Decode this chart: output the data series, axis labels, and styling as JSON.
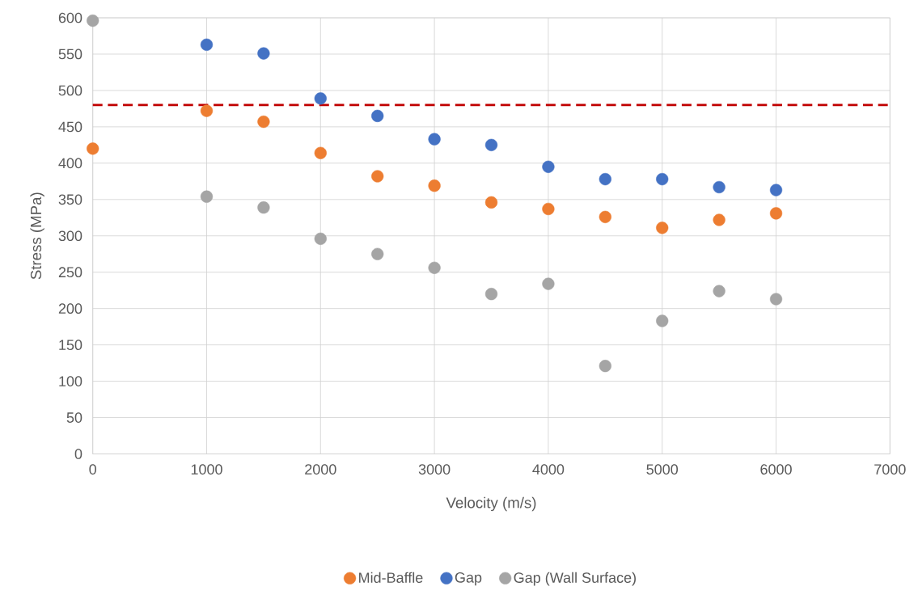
{
  "chart_data": {
    "type": "scatter",
    "xlabel": "Velocity (m/s)",
    "ylabel": "Stress (MPa)",
    "xlim": [
      0,
      7000
    ],
    "xticks": [
      0,
      1000,
      2000,
      3000,
      4000,
      5000,
      6000,
      7000
    ],
    "ylim": [
      0,
      600
    ],
    "yticks": [
      0,
      50,
      100,
      150,
      200,
      250,
      300,
      350,
      400,
      450,
      500,
      550,
      600
    ],
    "grid": true,
    "legend": "bottom",
    "marker": "circle",
    "series": [
      {
        "name": "Mid-Baffle",
        "color": "#ed7d31",
        "x": [
          0,
          1000,
          1500,
          2000,
          2500,
          3000,
          3500,
          4000,
          4500,
          5000,
          5500,
          6000
        ],
        "values": [
          420,
          472,
          457,
          414,
          382,
          369,
          346,
          337,
          326,
          311,
          322,
          331
        ]
      },
      {
        "name": "Gap",
        "color": "#4472c4",
        "x": [
          1000,
          1500,
          2000,
          2500,
          3000,
          3500,
          4000,
          4500,
          5000,
          5500,
          6000
        ],
        "values": [
          563,
          551,
          489,
          465,
          433,
          425,
          395,
          378,
          378,
          367,
          363
        ]
      },
      {
        "name": "Gap (Wall Surface)",
        "color": "#a5a5a5",
        "x": [
          0,
          1000,
          1500,
          2000,
          2500,
          3000,
          3500,
          4000,
          4500,
          5000,
          5500,
          6000
        ],
        "values": [
          596,
          354,
          339,
          296,
          275,
          256,
          220,
          234,
          121,
          183,
          224,
          213
        ]
      }
    ],
    "ref_lines": [
      {
        "axis": "y",
        "value": 480,
        "color": "#c00000",
        "line_style": "dashed"
      }
    ]
  }
}
